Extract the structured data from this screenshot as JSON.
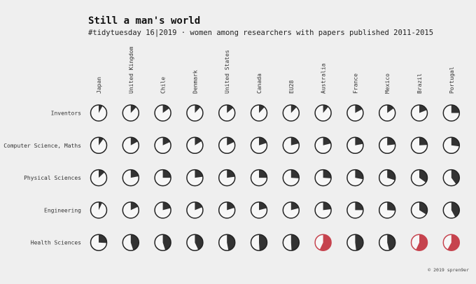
{
  "chart_data": {
    "type": "pie",
    "title": "Still a man's world",
    "subtitle": "#tidytuesday 16|2019 · women among researchers with papers published 2011-2015",
    "credit": "© 2019 spren9er",
    "columns": [
      "Japan",
      "United Kingdom",
      "Chile",
      "Denmark",
      "United States",
      "Canada",
      "EU28",
      "Australia",
      "France",
      "Mexico",
      "Brazil",
      "Portugal"
    ],
    "rows": [
      {
        "name": "Inventors",
        "values": [
          0.08,
          0.12,
          0.15,
          0.12,
          0.14,
          0.12,
          0.12,
          0.11,
          0.17,
          0.15,
          0.19,
          0.25
        ]
      },
      {
        "name": "Computer Science, Maths",
        "values": [
          0.1,
          0.17,
          0.18,
          0.16,
          0.18,
          0.2,
          0.21,
          0.21,
          0.22,
          0.23,
          0.24,
          0.27
        ]
      },
      {
        "name": "Physical Sciences",
        "values": [
          0.13,
          0.22,
          0.25,
          0.23,
          0.23,
          0.25,
          0.26,
          0.26,
          0.28,
          0.3,
          0.35,
          0.4
        ]
      },
      {
        "name": "Engineering",
        "values": [
          0.07,
          0.18,
          0.21,
          0.19,
          0.2,
          0.21,
          0.21,
          0.23,
          0.25,
          0.26,
          0.34,
          0.42
        ]
      },
      {
        "name": "Health Sciences",
        "values": [
          0.26,
          0.45,
          0.45,
          0.43,
          0.47,
          0.49,
          0.49,
          0.57,
          0.48,
          0.46,
          0.57,
          0.58
        ]
      }
    ],
    "colors": {
      "default": "#333333",
      "majority": "#c6434e",
      "face": "#f7f7f7",
      "stroke": "#222222"
    },
    "majority_threshold": 0.5
  }
}
